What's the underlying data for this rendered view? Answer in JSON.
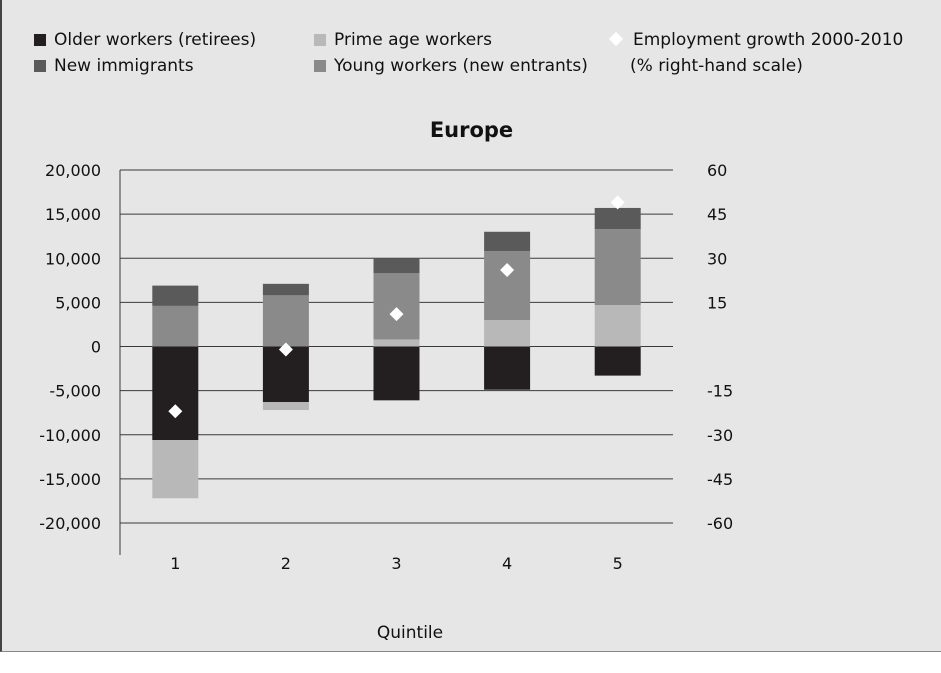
{
  "legend": {
    "older": "Older workers (retirees)",
    "prime": "Prime age workers",
    "growth_line1": "Employment growth 2000-2010",
    "growth_line2": "(% right-hand scale)",
    "immigrants": "New immigrants",
    "young": "Young workers (new entrants)"
  },
  "colors": {
    "older": "#231f20",
    "prime": "#b8b8b8",
    "immigrants": "#5a5a5a",
    "young": "#8a8a8a",
    "growth": "#ffffff",
    "background": "#e6e6e6"
  },
  "chart_data": {
    "type": "bar",
    "stacked": true,
    "title": "Europe",
    "xlabel": "Quintile",
    "categories": [
      "1",
      "2",
      "3",
      "4",
      "5"
    ],
    "ylim": [
      -20000,
      20000
    ],
    "yticks": [
      20000,
      15000,
      10000,
      5000,
      0,
      -5000,
      -10000,
      -15000,
      -20000
    ],
    "ytick_labels": [
      "20,000",
      "15,000",
      "10,000",
      "5,000",
      "0",
      "-5,000",
      "-10,000",
      "-15,000",
      "-20,000"
    ],
    "y2lim": [
      -60,
      60
    ],
    "y2ticks": [
      60,
      45,
      30,
      15,
      -15,
      -30,
      -45,
      -60
    ],
    "y2tick_labels": [
      "60",
      "45",
      "30",
      "15",
      "-15",
      "-30",
      "-45",
      "-60"
    ],
    "grid": true,
    "legend_position": "top",
    "series": [
      {
        "key": "older",
        "name": "Older workers (retirees)",
        "values": [
          -10600,
          -6300,
          -6100,
          -4900,
          -3300
        ]
      },
      {
        "key": "prime",
        "name": "Prime age workers",
        "values": [
          -6600,
          -900,
          800,
          3000,
          4700
        ]
      },
      {
        "key": "young",
        "name": "Young workers (new entrants)",
        "values": [
          4600,
          5800,
          7500,
          7800,
          8600
        ]
      },
      {
        "key": "immigrants",
        "name": "New immigrants",
        "values": [
          2300,
          1300,
          1700,
          2200,
          2400
        ]
      }
    ],
    "growth": {
      "name": "Employment growth 2000-2010 (% right-hand scale)",
      "axis": "right",
      "values": [
        -22,
        -1,
        11,
        26,
        49
      ]
    }
  }
}
